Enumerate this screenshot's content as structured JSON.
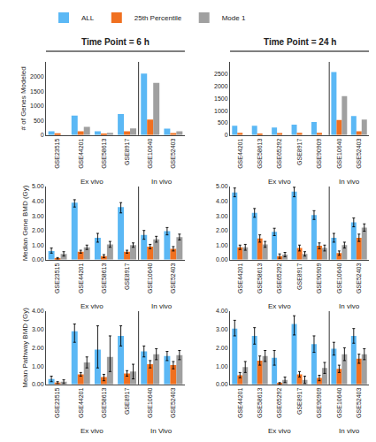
{
  "chart_data": [
    {
      "type": "bar",
      "title": "Time Point = 6 h",
      "ylabel": "# of Genes Modeled",
      "categories": [
        "GSE23515",
        "GSE44201",
        "GSE58613",
        "GSE8917",
        "GSE10640",
        "GSE52403"
      ],
      "series": [
        {
          "name": "ALL",
          "color": "#5BB8F5",
          "values": [
            130,
            670,
            130,
            720,
            2100,
            220
          ]
        },
        {
          "name": "25th Percentile",
          "color": "#F07020",
          "values": [
            60,
            130,
            50,
            130,
            530,
            70
          ]
        },
        {
          "name": "Mode 1",
          "color": "#A0A0A0",
          "values": [
            0,
            280,
            80,
            230,
            1780,
            130
          ]
        }
      ],
      "ylim": [
        0,
        2500
      ],
      "yticks": [
        0,
        500,
        1000,
        1500,
        2000
      ],
      "grid": false,
      "legend": "upper left",
      "annotations": [
        {
          "text": "Ex vivo",
          "categories": [
            "GSE23515",
            "GSE44201",
            "GSE58613",
            "GSE8917"
          ]
        },
        {
          "text": "In vivo",
          "categories": [
            "GSE10640",
            "GSE52403"
          ]
        }
      ]
    },
    {
      "type": "bar",
      "title": "Time Point = 24 h",
      "categories": [
        "GSE44201",
        "GSE58613",
        "GSE65292",
        "GSE8917",
        "GSE90909",
        "GSE10640",
        "GSE52403"
      ],
      "series": [
        {
          "name": "ALL",
          "color": "#5BB8F5",
          "values": [
            380,
            380,
            310,
            430,
            540,
            2580,
            780
          ]
        },
        {
          "name": "25th Percentile",
          "color": "#F07020",
          "values": [
            90,
            65,
            80,
            90,
            90,
            620,
            160
          ]
        },
        {
          "name": "Mode 1",
          "color": "#A0A0A0",
          "values": [
            0,
            0,
            0,
            0,
            0,
            1600,
            640
          ]
        }
      ],
      "ylim": [
        0,
        3000
      ],
      "yticks": [
        0,
        500,
        1000,
        1500,
        2000,
        2500
      ],
      "grid": false,
      "annotations": [
        {
          "text": "Ex vivo",
          "categories": [
            "GSE44201",
            "GSE58613",
            "GSE65292",
            "GSE8917",
            "GSE90909"
          ]
        },
        {
          "text": "In vivo",
          "categories": [
            "GSE10640",
            "GSE52403"
          ]
        }
      ]
    },
    {
      "type": "bar",
      "ylabel": "Median Gene BMD (Gy)",
      "categories": [
        "GSE23515",
        "GSE44201",
        "GSE58613",
        "GSE8917",
        "GSE10640",
        "GSE52403"
      ],
      "series": [
        {
          "name": "ALL",
          "color": "#5BB8F5",
          "values": [
            0.6,
            3.9,
            1.5,
            3.6,
            1.7,
            1.95
          ],
          "error_low": [
            0.45,
            3.6,
            1.2,
            3.2,
            1.4,
            1.7
          ],
          "error_high": [
            0.8,
            4.1,
            1.8,
            3.9,
            2.0,
            2.2
          ]
        },
        {
          "name": "25th Percentile",
          "color": "#F07020",
          "values": [
            0.1,
            0.55,
            0.25,
            0.55,
            0.9,
            0.75
          ],
          "error_low": [
            0.05,
            0.45,
            0.15,
            0.45,
            0.75,
            0.6
          ],
          "error_high": [
            0.15,
            0.65,
            0.35,
            0.65,
            1.05,
            0.9
          ]
        },
        {
          "name": "Mode 1",
          "color": "#A0A0A0",
          "values": [
            0.4,
            0.85,
            1.05,
            1.0,
            1.4,
            1.55
          ],
          "error_low": [
            0.25,
            0.7,
            0.85,
            0.85,
            1.2,
            1.35
          ],
          "error_high": [
            0.55,
            1.0,
            1.25,
            1.15,
            1.6,
            1.75
          ]
        }
      ],
      "ylim": [
        0,
        5.0
      ],
      "yticks": [
        {
          "value": 0.0,
          "label": "0.00"
        },
        {
          "value": 1.0,
          "label": "1.00"
        },
        {
          "value": 2.0,
          "label": "2.00"
        },
        {
          "value": 3.0,
          "label": "3.00"
        },
        {
          "value": 4.0,
          "label": "4.00"
        },
        {
          "value": 5.0,
          "label": "5.00"
        }
      ],
      "grid": false,
      "annotations": [
        {
          "text": "Ex vivo",
          "categories": [
            "GSE23515",
            "GSE44201",
            "GSE58613",
            "GSE8917"
          ]
        },
        {
          "text": "In vivo",
          "categories": [
            "GSE10640",
            "GSE52403"
          ]
        }
      ]
    },
    {
      "type": "bar",
      "categories": [
        "GSE44201",
        "GSE58613",
        "GSE65292",
        "GSE8917",
        "GSE90909",
        "GSE10640",
        "GSE52403"
      ],
      "series": [
        {
          "name": "ALL",
          "color": "#5BB8F5",
          "values": [
            4.6,
            3.2,
            1.9,
            4.65,
            3.05,
            1.5,
            2.55
          ],
          "error_low": [
            4.3,
            2.9,
            1.65,
            4.3,
            2.75,
            1.2,
            2.25
          ],
          "error_high": [
            4.9,
            3.5,
            2.15,
            4.95,
            3.35,
            1.8,
            2.85
          ]
        },
        {
          "name": "25th Percentile",
          "color": "#F07020",
          "values": [
            0.85,
            1.45,
            0.25,
            0.8,
            0.95,
            0.45,
            1.5
          ],
          "error_low": [
            0.7,
            1.2,
            0.1,
            0.6,
            0.75,
            0.3,
            1.25
          ],
          "error_high": [
            1.0,
            1.7,
            0.4,
            1.0,
            1.15,
            0.6,
            1.75
          ]
        },
        {
          "name": "Mode 1",
          "color": "#A0A0A0",
          "values": [
            0.85,
            1.05,
            0.35,
            0.4,
            0.8,
            1.0,
            2.2
          ],
          "error_low": [
            0.65,
            0.85,
            0.2,
            0.25,
            0.6,
            0.8,
            1.95
          ],
          "error_high": [
            1.05,
            1.25,
            0.5,
            0.55,
            1.0,
            1.2,
            2.45
          ]
        }
      ],
      "ylim": [
        0,
        5.0
      ],
      "yticks": [
        {
          "value": 0.0,
          "label": "0.00"
        },
        {
          "value": 1.0,
          "label": "1.00"
        },
        {
          "value": 2.0,
          "label": "2.00"
        },
        {
          "value": 3.0,
          "label": "3.00"
        },
        {
          "value": 4.0,
          "label": "4.00"
        },
        {
          "value": 5.0,
          "label": "5.00"
        }
      ],
      "grid": false,
      "annotations": [
        {
          "text": "Ex vivo",
          "categories": [
            "GSE44201",
            "GSE58613",
            "GSE65292",
            "GSE8917",
            "GSE90909"
          ]
        },
        {
          "text": "In vivo",
          "categories": [
            "GSE10640",
            "GSE52403"
          ]
        }
      ]
    },
    {
      "type": "bar",
      "ylabel": "Mean Pathway BMD (Gy)",
      "categories": [
        "GSE23515",
        "GSE44201",
        "GSE58613",
        "GSE8917",
        "GSE10640",
        "GSE52403"
      ],
      "series": [
        {
          "name": "ALL",
          "color": "#5BB8F5",
          "values": [
            0.3,
            2.9,
            1.9,
            2.65,
            1.8,
            1.55
          ],
          "error_low": [
            0.15,
            2.3,
            0.9,
            2.1,
            1.5,
            1.3
          ],
          "error_high": [
            0.45,
            3.3,
            3.2,
            3.2,
            2.1,
            1.8
          ]
        },
        {
          "name": "25th Percentile",
          "color": "#F07020",
          "values": [
            0.1,
            0.55,
            0.4,
            0.6,
            1.1,
            1.05
          ],
          "error_low": [
            0.05,
            0.45,
            0.2,
            0.45,
            0.9,
            0.85
          ],
          "error_high": [
            0.15,
            0.65,
            0.55,
            0.75,
            1.3,
            1.25
          ]
        },
        {
          "name": "Mode 1",
          "color": "#A0A0A0",
          "values": [
            0.15,
            1.2,
            1.5,
            0.7,
            1.65,
            1.6
          ],
          "error_low": [
            0.05,
            0.9,
            0.7,
            0.3,
            1.35,
            1.35
          ],
          "error_high": [
            0.25,
            1.5,
            2.65,
            1.1,
            1.95,
            1.85
          ]
        }
      ],
      "ylim": [
        0,
        4.0
      ],
      "yticks": [
        {
          "value": 0.0,
          "label": "0.00"
        },
        {
          "value": 1.0,
          "label": "1.00"
        },
        {
          "value": 2.0,
          "label": "2.00"
        },
        {
          "value": 3.0,
          "label": "3.00"
        },
        {
          "value": 4.0,
          "label": "4.00"
        }
      ],
      "grid": false,
      "annotations": [
        {
          "text": "Ex vivo",
          "categories": [
            "GSE23515",
            "GSE44201",
            "GSE58613",
            "GSE8917"
          ]
        },
        {
          "text": "In Vivo",
          "categories": [
            "GSE10640",
            "GSE52403"
          ]
        }
      ]
    },
    {
      "type": "bar",
      "categories": [
        "GSE44201",
        "GSE58613",
        "GSE65292",
        "GSE8917",
        "GSE90909",
        "GSE10640",
        "GSE52403"
      ],
      "series": [
        {
          "name": "ALL",
          "color": "#5BB8F5",
          "values": [
            3.05,
            2.65,
            1.45,
            3.3,
            2.2,
            1.95,
            2.65
          ],
          "error_low": [
            2.65,
            2.2,
            1.05,
            2.7,
            1.75,
            1.6,
            2.25
          ],
          "error_high": [
            3.5,
            3.1,
            1.85,
            3.75,
            2.65,
            2.3,
            3.05
          ]
        },
        {
          "name": "25th Percentile",
          "color": "#F07020",
          "values": [
            0.5,
            1.3,
            0.05,
            0.55,
            0.35,
            0.85,
            1.4
          ],
          "error_low": [
            0.35,
            1.05,
            0.02,
            0.4,
            0.2,
            0.65,
            1.15
          ],
          "error_high": [
            0.65,
            1.55,
            0.1,
            0.7,
            0.5,
            1.05,
            1.65
          ]
        },
        {
          "name": "Mode 1",
          "color": "#A0A0A0",
          "values": [
            0.95,
            1.55,
            0.25,
            0.25,
            0.9,
            1.65,
            1.65
          ],
          "error_low": [
            0.65,
            1.25,
            0.1,
            0.05,
            0.6,
            1.3,
            1.35
          ],
          "error_high": [
            1.25,
            1.85,
            0.4,
            0.45,
            1.2,
            2.0,
            1.95
          ]
        }
      ],
      "ylim": [
        0,
        4.0
      ],
      "yticks": [
        {
          "value": 0.0,
          "label": "0.00"
        },
        {
          "value": 1.0,
          "label": "1.00"
        },
        {
          "value": 2.0,
          "label": "2.00"
        },
        {
          "value": 3.0,
          "label": "3.00"
        },
        {
          "value": 4.0,
          "label": "4.00"
        }
      ],
      "grid": false,
      "annotations": [
        {
          "text": "Ex vivo",
          "categories": [
            "GSE44201",
            "GSE58613",
            "GSE65292",
            "GSE8917",
            "GSE90909"
          ]
        },
        {
          "text": "In vivo",
          "categories": [
            "GSE10640",
            "GSE52403"
          ]
        }
      ]
    }
  ]
}
